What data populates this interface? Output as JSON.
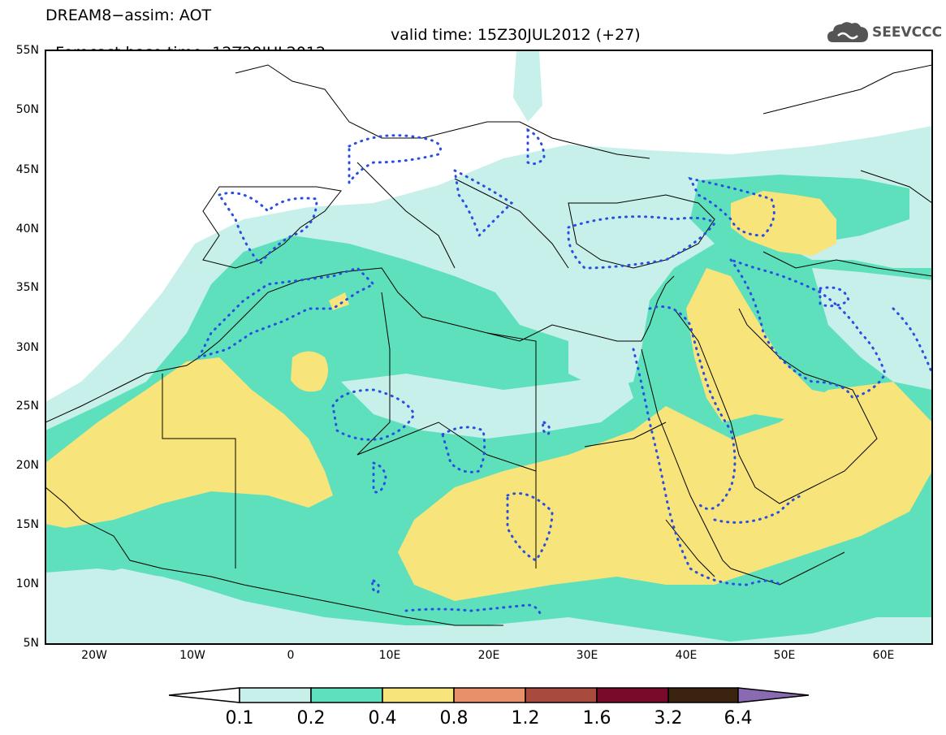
{
  "header": {
    "line1": "DREAM8−assim: AOT",
    "base_time": "Forecast base time: 12Z29JUL2012",
    "valid_time": "valid time: 15Z30JUL2012 (+27)"
  },
  "logo": {
    "text": "SEEVCCC",
    "icon": "cloud-icon"
  },
  "map": {
    "region": "North Africa, Mediterranean, Middle East",
    "lat_labels": [
      "55N",
      "50N",
      "45N",
      "40N",
      "35N",
      "30N",
      "25N",
      "20N",
      "15N",
      "10N",
      "5N"
    ],
    "lon_labels": [
      "20W",
      "10W",
      "0",
      "10E",
      "20E",
      "30E",
      "40E",
      "50E",
      "60E"
    ]
  },
  "colorbar": {
    "labels": [
      "0.1",
      "0.2",
      "0.4",
      "0.8",
      "1.2",
      "1.6",
      "3.2",
      "6.4"
    ],
    "colors": [
      "#c8f0ea",
      "#5ee0bc",
      "#f7e47a",
      "#e8906a",
      "#a84a3c",
      "#7a0a2a",
      "#3a2410",
      "#8a6ab0"
    ]
  },
  "colors": {
    "aot_0_1": "#c8f0ea",
    "aot_0_2": "#5ee0bc",
    "aot_0_4": "#f7e47a",
    "contour": "#2a4fe0"
  }
}
